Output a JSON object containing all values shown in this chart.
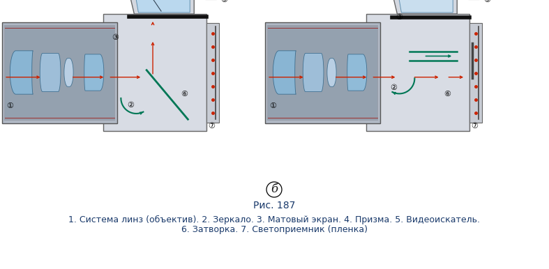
{
  "title": "Рис. 187",
  "label_б": "б",
  "caption_line1": "1. Система линз (объектив). 2. Зеркало. 3. Матовый экран. 4. Призма. 5. Видеоискатель.",
  "caption_line2": "6. Затворка. 7. Светоприемник (пленка)",
  "title_color": "#1a3a6b",
  "caption_color": "#1a3a6b",
  "label_б_color": "#1a1a1a",
  "bg_color": "#ffffff",
  "title_fontsize": 10,
  "caption_fontsize": 9,
  "label_б_fontsize": 12,
  "fig_width": 7.87,
  "fig_height": 3.86,
  "dpi": 100
}
